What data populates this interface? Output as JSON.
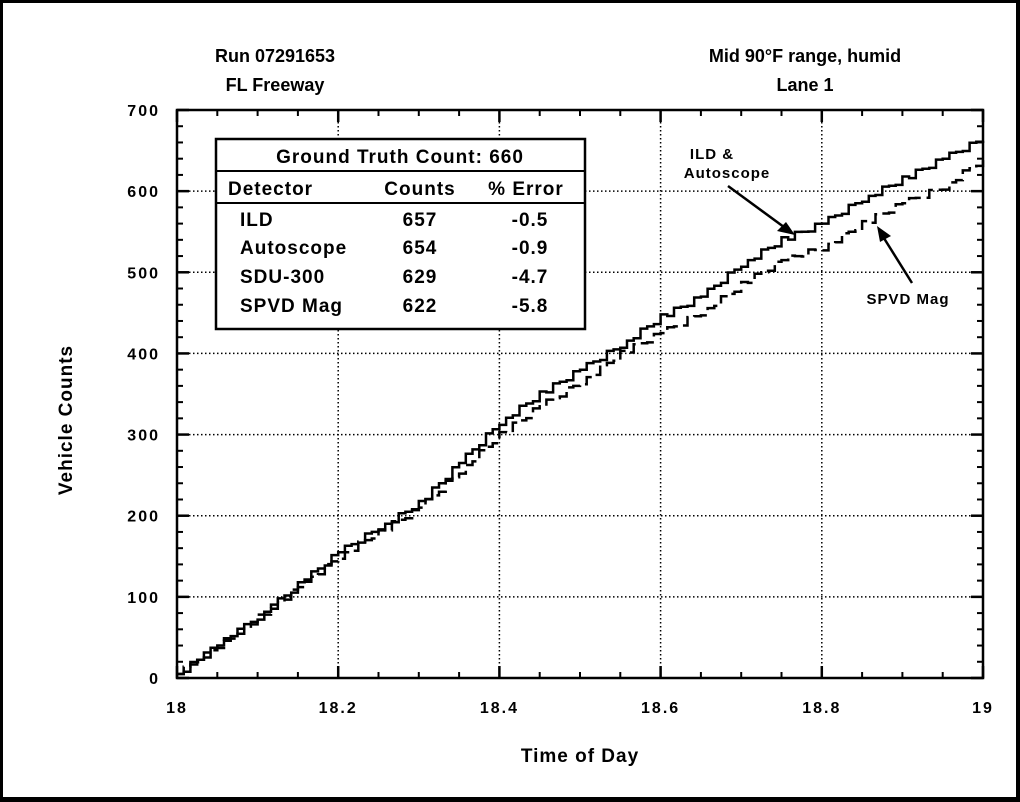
{
  "chart_data": {
    "type": "line",
    "header": {
      "left": [
        "Run 07291653",
        "FL Freeway"
      ],
      "right": [
        "Mid 90°F range, humid",
        "Lane 1"
      ]
    },
    "xlabel": "Time of Day",
    "ylabel": "Vehicle Counts",
    "xlim": [
      18,
      19
    ],
    "ylim": [
      0,
      700
    ],
    "x_ticks": [
      18,
      18.2,
      18.4,
      18.6,
      18.8,
      19
    ],
    "x_tick_labels": [
      "18",
      "18.2",
      "18.4",
      "18.6",
      "18.8",
      "19"
    ],
    "y_ticks": [
      0,
      100,
      200,
      300,
      400,
      500,
      600,
      700
    ],
    "y_tick_labels": [
      "0",
      "100",
      "200",
      "300",
      "400",
      "500",
      "600",
      "700"
    ],
    "grid": true,
    "series": [
      {
        "style": "solid",
        "x": [
          18,
          18.05,
          18.1,
          18.15,
          18.2,
          18.25,
          18.3,
          18.35,
          18.4,
          18.45,
          18.5,
          18.55,
          18.6,
          18.65,
          18.7,
          18.75,
          18.8,
          18.85,
          18.9,
          18.95,
          19
        ],
        "y": [
          5,
          40,
          75,
          115,
          155,
          185,
          215,
          265,
          315,
          350,
          380,
          410,
          445,
          470,
          510,
          540,
          560,
          590,
          615,
          640,
          665
        ]
      },
      {
        "style": "dashed",
        "x": [
          18,
          18.05,
          18.1,
          18.15,
          18.2,
          18.25,
          18.3,
          18.35,
          18.4,
          18.45,
          18.5,
          18.55,
          18.6,
          18.65,
          18.7,
          18.75,
          18.8,
          18.85,
          18.9,
          18.95,
          19
        ],
        "y": [
          5,
          40,
          75,
          112,
          150,
          180,
          210,
          255,
          300,
          335,
          365,
          400,
          425,
          450,
          485,
          515,
          530,
          560,
          585,
          605,
          640
        ]
      }
    ],
    "table": {
      "title": "Ground Truth Count:  660",
      "headers": [
        "Detector",
        "Counts",
        "% Error"
      ],
      "rows": [
        [
          "ILD",
          "657",
          "-0.5"
        ],
        [
          "Autoscope",
          "654",
          "-0.9"
        ],
        [
          "SDU-300",
          "629",
          "-4.7"
        ],
        [
          "SPVD Mag",
          "622",
          "-5.8"
        ]
      ]
    },
    "annotations": [
      {
        "text": [
          "ILD &",
          "Autoscope"
        ],
        "target": "solid"
      },
      {
        "text": [
          "SPVD Mag"
        ],
        "target": "dashed"
      }
    ]
  }
}
